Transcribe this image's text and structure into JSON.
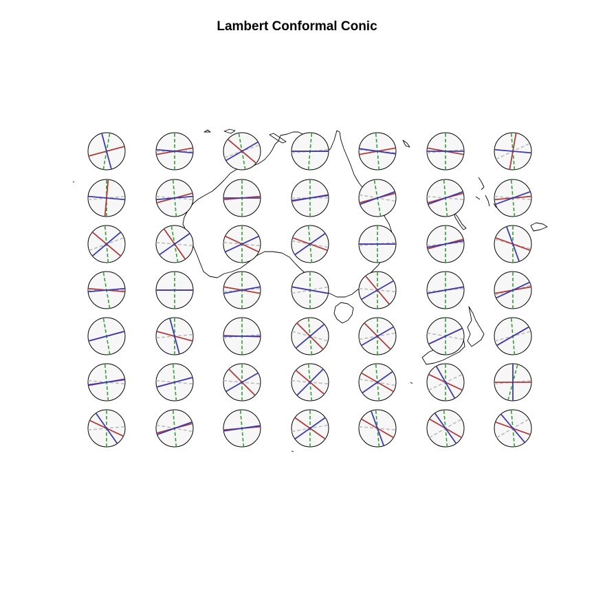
{
  "title": "Lambert Conformal Conic",
  "colors": {
    "background": "#ffffff",
    "outline": "#000000",
    "circle_fill": "#f7f7f7",
    "red_axis": "#b03a3a",
    "blue_axis": "#3a3ab0",
    "green_dashed": "#2ea02e",
    "gray_dashed": "#bbbbbb"
  },
  "grid": {
    "rows": 7,
    "cols": 7
  },
  "indicatrices": [
    [
      {
        "r": 15,
        "b": 105,
        "g": 10,
        "y": 80
      },
      {
        "r": 10,
        "b": -5,
        "g": -5,
        "y": 90
      },
      {
        "r": -40,
        "b": 30,
        "g": 15,
        "y": 100
      },
      {
        "r": 0,
        "b": 0,
        "g": 0,
        "y": 85
      },
      {
        "r": 10,
        "b": -8,
        "g": -10,
        "y": 95
      },
      {
        "r": -10,
        "b": 0,
        "g": 0,
        "y": 90
      },
      {
        "r": 80,
        "b": -5,
        "g": 20,
        "y": 95
      }
    ],
    [
      {
        "r": 85,
        "b": -5,
        "g": 0,
        "y": 90
      },
      {
        "r": 15,
        "b": 5,
        "g": -10,
        "y": 95
      },
      {
        "r": 5,
        "b": 0,
        "g": -5,
        "y": 90
      },
      {
        "r": 10,
        "b": 8,
        "g": -5,
        "y": 90
      },
      {
        "r": 15,
        "b": 20,
        "g": -15,
        "y": 100
      },
      {
        "r": 15,
        "b": 20,
        "g": -10,
        "y": 95
      },
      {
        "r": 5,
        "b": 20,
        "g": -10,
        "y": 95
      }
    ],
    [
      {
        "r": -40,
        "b": 40,
        "g": 15,
        "y": 95
      },
      {
        "r": -55,
        "b": 35,
        "g": -10,
        "y": 100
      },
      {
        "r": -25,
        "b": 25,
        "g": -10,
        "y": 90
      },
      {
        "r": -20,
        "b": 35,
        "g": -15,
        "y": 95
      },
      {
        "r": 0,
        "b": 0,
        "g": 0,
        "y": 90
      },
      {
        "r": 15,
        "b": 10,
        "g": 0,
        "y": 90
      },
      {
        "r": -20,
        "b": -70,
        "g": -20,
        "y": 90
      }
    ],
    [
      {
        "r": -5,
        "b": 5,
        "g": -5,
        "y": 100
      },
      {
        "r": 0,
        "b": 0,
        "g": -5,
        "y": 90
      },
      {
        "r": -10,
        "b": 10,
        "g": 0,
        "y": 90
      },
      {
        "r": -10,
        "b": -10,
        "g": 5,
        "y": 90
      },
      {
        "r": -50,
        "b": 30,
        "g": -10,
        "y": 90
      },
      {
        "r": 10,
        "b": 10,
        "g": 0,
        "y": 90
      },
      {
        "r": 10,
        "b": 25,
        "g": 10,
        "y": 90
      }
    ],
    [
      {
        "r": 15,
        "b": 15,
        "g": 10,
        "y": 100
      },
      {
        "r": -15,
        "b": -75,
        "g": 0,
        "y": 90
      },
      {
        "r": -2,
        "b": 0,
        "g": 0,
        "y": 90
      },
      {
        "r": -45,
        "b": 40,
        "g": -20,
        "y": 95
      },
      {
        "r": -45,
        "b": 30,
        "g": 5,
        "y": 90
      },
      {
        "r": 25,
        "b": 25,
        "g": -15,
        "y": 90
      },
      {
        "r": 30,
        "b": 30,
        "g": 10,
        "y": 95
      }
    ],
    [
      {
        "r": 10,
        "b": 8,
        "g": -10,
        "y": 95
      },
      {
        "r": 15,
        "b": 15,
        "g": -10,
        "y": 95
      },
      {
        "r": -45,
        "b": 30,
        "g": -10,
        "y": 90
      },
      {
        "r": -40,
        "b": 45,
        "g": -10,
        "y": 95
      },
      {
        "r": -30,
        "b": 35,
        "g": -15,
        "y": 95
      },
      {
        "r": -25,
        "b": -60,
        "g": 20,
        "y": 90
      },
      {
        "r": 0,
        "b": 90,
        "g": 0,
        "y": 75
      }
    ],
    [
      {
        "r": -25,
        "b": -55,
        "g": 0,
        "y": 90
      },
      {
        "r": 15,
        "b": 20,
        "g": -15,
        "y": 95
      },
      {
        "r": 5,
        "b": 8,
        "g": 0,
        "y": 95
      },
      {
        "r": -35,
        "b": 35,
        "g": 5,
        "y": 90
      },
      {
        "r": -30,
        "b": -70,
        "g": -10,
        "y": 95
      },
      {
        "r": -30,
        "b": -55,
        "g": 25,
        "y": 95
      },
      {
        "r": -20,
        "b": -50,
        "g": 25,
        "y": 95
      }
    ]
  ]
}
